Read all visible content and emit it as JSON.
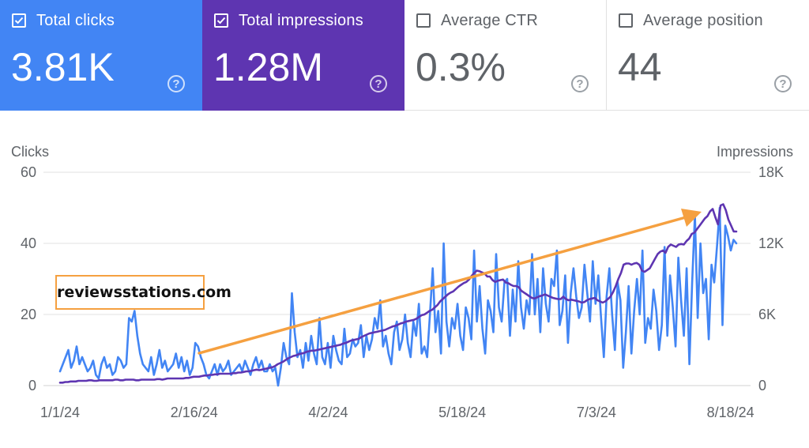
{
  "colors": {
    "clicks": "#4285f4",
    "impressions": "#5e35b1",
    "trend_arrow": "#f5a040",
    "grid": "#e0e0e0",
    "axis_text": "#5f6368"
  },
  "metric_cards": [
    {
      "label": "Total clicks",
      "value": "3.81K",
      "selected": true,
      "bg": "#4285f4",
      "help_icon": "help-circle-icon"
    },
    {
      "label": "Total impressions",
      "value": "1.28M",
      "selected": true,
      "bg": "#5e35b1",
      "help_icon": "help-circle-icon"
    },
    {
      "label": "Average CTR",
      "value": "0.3%",
      "selected": false,
      "bg": "#ffffff",
      "help_icon": "help-circle-icon"
    },
    {
      "label": "Average position",
      "value": "44",
      "selected": false,
      "bg": "#ffffff",
      "help_icon": "help-circle-icon"
    }
  ],
  "watermark": "reviewsstations.com",
  "chart_data": {
    "type": "line",
    "left_axis": {
      "label": "Clicks",
      "ticks": [
        "0",
        "20",
        "40",
        "60"
      ],
      "range": [
        0,
        60
      ]
    },
    "right_axis": {
      "label": "Impressions",
      "ticks": [
        "0",
        "6K",
        "12K",
        "18K"
      ],
      "range": [
        0,
        18000
      ]
    },
    "x_tick_labels": [
      "1/1/24",
      "2/16/24",
      "4/2/24",
      "5/18/24",
      "7/3/24",
      "8/18/24"
    ],
    "x_tick_days": [
      0,
      46,
      92,
      138,
      184,
      230
    ],
    "x_range_days": [
      0,
      232
    ],
    "grid": true,
    "series": [
      {
        "name": "Clicks",
        "axis": "left",
        "color": "#4285f4",
        "values": [
          4,
          6,
          8,
          10,
          5,
          7,
          11,
          6,
          8,
          6,
          4,
          5,
          7,
          3,
          2,
          6,
          8,
          5,
          6,
          3,
          4,
          8,
          7,
          5,
          6,
          19,
          18,
          21,
          14,
          9,
          6,
          5,
          4,
          8,
          3,
          6,
          10,
          5,
          7,
          4,
          5,
          6,
          9,
          5,
          8,
          4,
          7,
          3,
          5,
          12,
          11,
          8,
          6,
          3,
          2,
          4,
          6,
          3,
          6,
          4,
          5,
          7,
          3,
          4,
          5,
          6,
          4,
          7,
          5,
          3,
          6,
          8,
          5,
          7,
          4,
          4,
          6,
          4,
          5,
          0,
          5,
          12,
          8,
          6,
          26,
          15,
          8,
          10,
          5,
          12,
          7,
          14,
          9,
          6,
          19,
          8,
          6,
          12,
          5,
          14,
          10,
          7,
          6,
          16,
          8,
          9,
          13,
          11,
          12,
          17,
          8,
          14,
          10,
          13,
          19,
          16,
          24,
          11,
          14,
          9,
          6,
          15,
          18,
          10,
          13,
          20,
          12,
          8,
          18,
          14,
          23,
          9,
          11,
          8,
          20,
          33,
          15,
          21,
          9,
          40,
          18,
          11,
          19,
          16,
          23,
          14,
          10,
          22,
          19,
          13,
          38,
          18,
          28,
          16,
          9,
          24,
          21,
          15,
          37,
          22,
          18,
          29,
          30,
          14,
          27,
          18,
          35,
          22,
          16,
          24,
          20,
          37,
          20,
          30,
          15,
          33,
          23,
          18,
          30,
          28,
          38,
          17,
          21,
          31,
          12,
          26,
          33,
          25,
          19,
          22,
          34,
          26,
          18,
          35,
          23,
          31,
          19,
          8,
          25,
          33,
          20,
          10,
          29,
          24,
          5,
          15,
          28,
          9,
          21,
          30,
          20,
          38,
          12,
          19,
          16,
          27,
          21,
          10,
          17,
          39,
          14,
          31,
          22,
          11,
          36,
          24,
          14,
          33,
          6,
          29,
          48,
          19,
          40,
          26,
          30,
          13,
          34,
          29,
          39,
          50,
          17,
          45,
          42,
          38,
          41,
          40
        ]
      },
      {
        "name": "Impressions",
        "axis": "right",
        "color": "#5e35b1",
        "values": [
          250,
          250,
          300,
          300,
          350,
          350,
          350,
          400,
          400,
          400,
          400,
          450,
          450,
          400,
          400,
          450,
          450,
          450,
          450,
          450,
          450,
          500,
          500,
          450,
          450,
          500,
          500,
          500,
          500,
          450,
          450,
          500,
          500,
          500,
          500,
          500,
          500,
          550,
          550,
          500,
          550,
          600,
          600,
          600,
          600,
          600,
          600,
          600,
          650,
          650,
          700,
          750,
          750,
          750,
          800,
          850,
          850,
          900,
          900,
          950,
          950,
          1000,
          1000,
          1000,
          1000,
          1000,
          1050,
          1050,
          1100,
          1100,
          1150,
          1200,
          1200,
          1250,
          1300,
          1350,
          1300,
          1350,
          1400,
          1450,
          1500,
          1550,
          1650,
          1800,
          1900,
          2000,
          2150,
          2300,
          2400,
          2500,
          2550,
          2650,
          2700,
          2750,
          2850,
          2900,
          2950,
          2950,
          3000,
          3050,
          3100,
          3150,
          3200,
          3250,
          3300,
          3350,
          3400,
          3450,
          3550,
          3600,
          3700,
          3800,
          3850,
          3900,
          3950,
          4100,
          4200,
          4300,
          4400,
          4450,
          4500,
          4550,
          4600,
          4650,
          4700,
          4800,
          4900,
          5000,
          5050,
          5150,
          5250,
          5300,
          5400,
          5450,
          5500,
          5550,
          5650,
          5800,
          5950,
          6000,
          6150,
          6300,
          6400,
          6600,
          6800,
          7100,
          7300,
          7500,
          7700,
          7850,
          7950,
          8150,
          8350,
          8500,
          8650,
          8750,
          8950,
          9250,
          9500,
          9700,
          9650,
          9550,
          9450,
          9200,
          9200,
          8900,
          8750,
          8850,
          8900,
          8950,
          8700,
          8650,
          8500,
          8400,
          8400,
          8300,
          8000,
          7850,
          7700,
          7550,
          7400,
          7350,
          7450,
          7550,
          7600,
          7700,
          7600,
          7500,
          7400,
          7350,
          7300,
          7300,
          7500,
          7300,
          7200,
          7250,
          7200,
          7150,
          7100,
          7000,
          7050,
          7200,
          7300,
          7350,
          7400,
          7200,
          7100,
          7000,
          7100,
          7300,
          7500,
          7900,
          8400,
          9000,
          9500,
          10200,
          10300,
          10300,
          10200,
          10300,
          10350,
          10200,
          9700,
          9600,
          9750,
          9900,
          10300,
          10700,
          11100,
          11300,
          11400,
          11200,
          11700,
          11900,
          11800,
          11700,
          11900,
          11950,
          11900,
          12200,
          12400,
          12800,
          12900,
          13200,
          13500,
          13800,
          14100,
          14300,
          14700,
          14900,
          14200,
          13600,
          15200,
          15300,
          14800,
          14000,
          13500,
          13000,
          13000
        ]
      }
    ]
  }
}
